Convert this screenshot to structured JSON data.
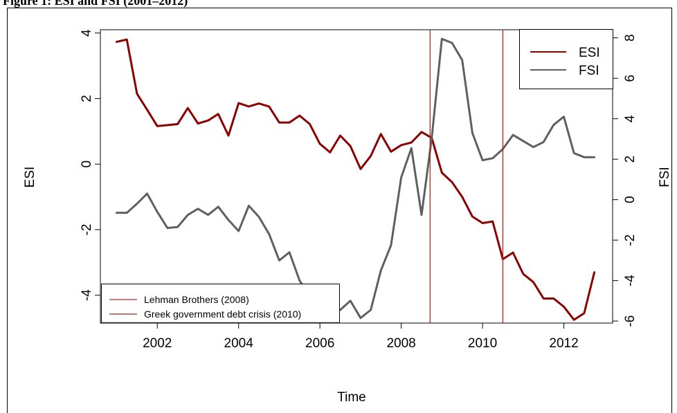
{
  "caption_fragment": "Figure 1: ESI and FSI (2001–2012)",
  "chart_data": {
    "type": "line",
    "xlabel": "Time",
    "ylabel_left": "ESI",
    "ylabel_right": "FSI",
    "xlim": [
      2000.6,
      2013.2
    ],
    "ylim_left": [
      -4.85,
      4.1
    ],
    "ylim_right": [
      -6.1,
      8.4
    ],
    "x_ticks": [
      2002,
      2004,
      2006,
      2008,
      2010,
      2012
    ],
    "y_ticks_left": [
      -4,
      -2,
      0,
      2,
      4
    ],
    "y_ticks_right": [
      -6,
      -4,
      -2,
      0,
      2,
      4,
      6,
      8
    ],
    "grid": false,
    "series": [
      {
        "name": "ESI",
        "axis": "left",
        "color": "#8b0000",
        "x": [
          2001.0,
          2001.25,
          2001.5,
          2001.75,
          2002.0,
          2002.25,
          2002.5,
          2002.75,
          2003.0,
          2003.25,
          2003.5,
          2003.75,
          2004.0,
          2004.25,
          2004.5,
          2004.75,
          2005.0,
          2005.25,
          2005.5,
          2005.75,
          2006.0,
          2006.25,
          2006.5,
          2006.75,
          2007.0,
          2007.25,
          2007.5,
          2007.75,
          2008.0,
          2008.25,
          2008.5,
          2008.75,
          2009.0,
          2009.25,
          2009.5,
          2009.75,
          2010.0,
          2010.25,
          2010.5,
          2010.75,
          2011.0,
          2011.25,
          2011.5,
          2011.75,
          2012.0,
          2012.25,
          2012.5,
          2012.75
        ],
        "values": [
          3.73,
          3.8,
          2.15,
          1.66,
          1.16,
          1.19,
          1.22,
          1.71,
          1.24,
          1.33,
          1.53,
          0.87,
          1.86,
          1.76,
          1.85,
          1.76,
          1.27,
          1.27,
          1.48,
          1.22,
          0.62,
          0.36,
          0.87,
          0.55,
          -0.15,
          0.25,
          0.92,
          0.38,
          0.58,
          0.66,
          0.98,
          0.8,
          -0.26,
          -0.55,
          -1.0,
          -1.6,
          -1.8,
          -1.75,
          -2.9,
          -2.7,
          -3.35,
          -3.6,
          -4.1,
          -4.1,
          -4.35,
          -4.75,
          -4.55,
          -3.3
        ]
      },
      {
        "name": "FSI",
        "axis": "right",
        "color": "#5f5f5f",
        "x": [
          2001.0,
          2001.25,
          2001.5,
          2001.75,
          2002.0,
          2002.25,
          2002.5,
          2002.75,
          2003.0,
          2003.25,
          2003.5,
          2003.75,
          2004.0,
          2004.25,
          2004.5,
          2004.75,
          2005.0,
          2005.25,
          2005.5,
          2005.75,
          2006.0,
          2006.25,
          2006.5,
          2006.75,
          2007.0,
          2007.25,
          2007.5,
          2007.75,
          2008.0,
          2008.25,
          2008.5,
          2008.75,
          2009.0,
          2009.25,
          2009.5,
          2009.75,
          2010.0,
          2010.25,
          2010.5,
          2010.75,
          2011.0,
          2011.25,
          2011.5,
          2011.75,
          2012.0,
          2012.25,
          2012.5,
          2012.75
        ],
        "values": [
          -0.65,
          -0.65,
          -0.2,
          0.3,
          -0.6,
          -1.4,
          -1.35,
          -0.75,
          -0.45,
          -0.75,
          -0.35,
          -1.0,
          -1.55,
          -0.3,
          -0.85,
          -1.7,
          -3.0,
          -2.6,
          -4.0,
          -4.8,
          -5.3,
          -5.7,
          -5.45,
          -5.0,
          -5.85,
          -5.45,
          -3.5,
          -2.25,
          1.1,
          2.55,
          -0.75,
          3.05,
          7.95,
          7.75,
          6.9,
          3.3,
          1.95,
          2.05,
          2.5,
          3.2,
          2.9,
          2.6,
          2.85,
          3.7,
          4.1,
          2.3,
          2.1,
          2.1
        ]
      }
    ],
    "events": [
      {
        "label": "Lehman Brothers (2008)",
        "x": 2008.71,
        "color": "#a52a2a"
      },
      {
        "label": "Greek government debt crisis (2010)",
        "x": 2010.5,
        "color": "#b22222"
      }
    ],
    "legend_series": {
      "position": "top-right",
      "entries": [
        "ESI",
        "FSI"
      ]
    },
    "legend_events": {
      "position": "bottom-left",
      "entries": [
        "Lehman Brothers (2008)",
        "Greek government debt crisis (2010)"
      ]
    }
  }
}
